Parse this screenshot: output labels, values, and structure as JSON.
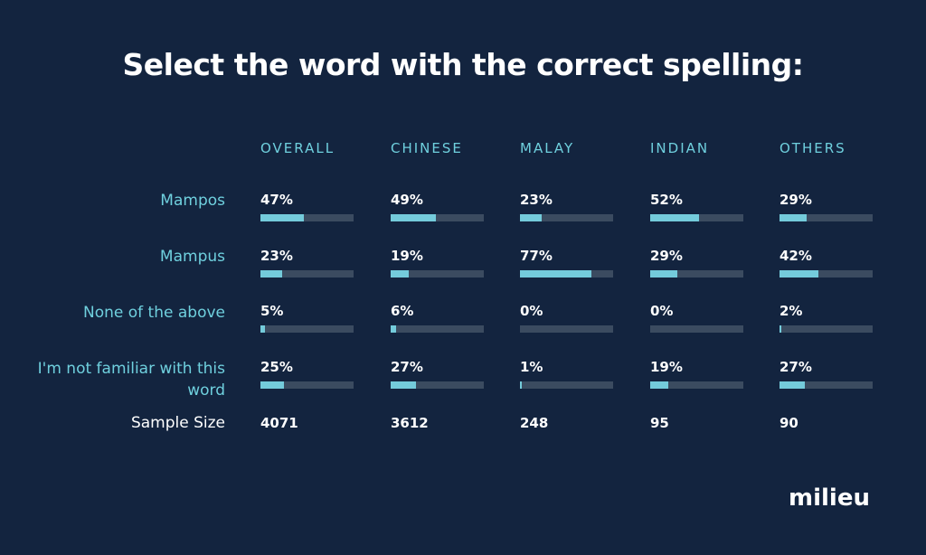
{
  "title": "Select the word with the correct spelling:",
  "logo_text": "milieu",
  "colors": {
    "background": "#13243f",
    "accent": "#6fd0de",
    "bar_fill": "#74cbdb",
    "bar_track": "#3b4b60"
  },
  "chart_data": {
    "type": "bar",
    "title": "Select the word with the correct spelling:",
    "columns": [
      "OVERALL",
      "CHINESE",
      "MALAY",
      "INDIAN",
      "OTHERS"
    ],
    "categories": [
      "Mampos",
      "Mampus",
      "None of the above",
      "I'm not familiar with this word"
    ],
    "series": [
      {
        "name": "OVERALL",
        "values": [
          47,
          23,
          5,
          25
        ]
      },
      {
        "name": "CHINESE",
        "values": [
          49,
          19,
          6,
          27
        ]
      },
      {
        "name": "MALAY",
        "values": [
          23,
          77,
          0,
          1
        ]
      },
      {
        "name": "INDIAN",
        "values": [
          52,
          29,
          0,
          19
        ]
      },
      {
        "name": "OTHERS",
        "values": [
          29,
          42,
          2,
          27
        ]
      }
    ],
    "unit": "%",
    "ylim": [
      0,
      100
    ],
    "sample_size_label": "Sample Size",
    "sample_sizes": [
      "4071",
      "3612",
      "248",
      "95",
      "90"
    ]
  }
}
